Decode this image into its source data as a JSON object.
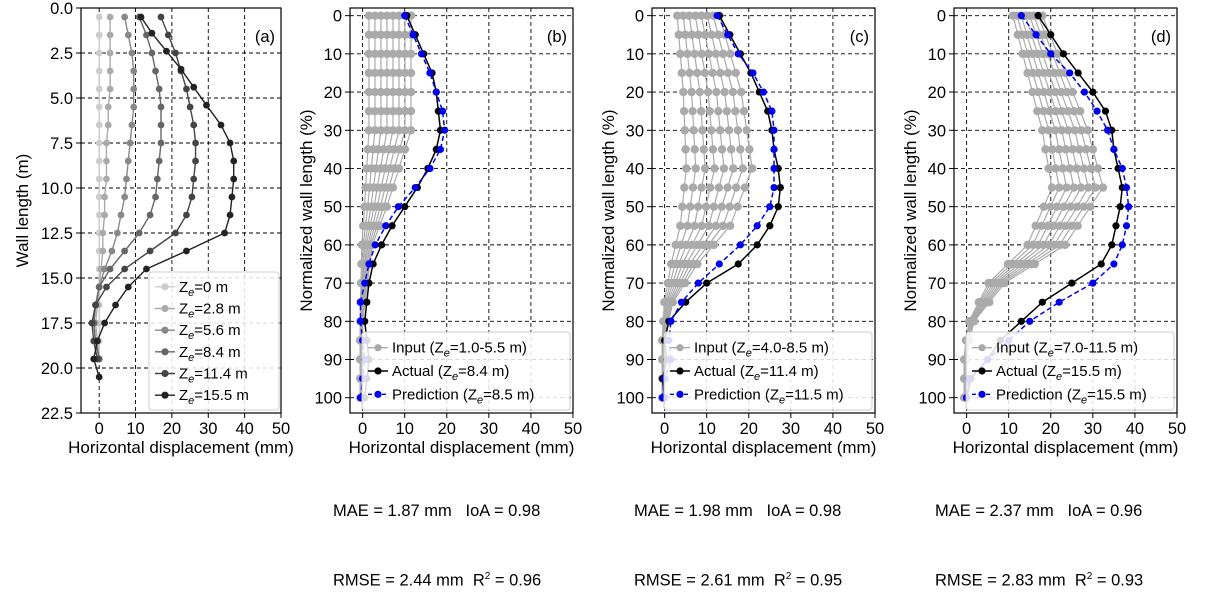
{
  "chart_data": [
    {
      "type": "line",
      "panel_label": "(a)",
      "xlabel": "Horizontal displacement (mm)",
      "ylabel": "Wall length (m)",
      "xlim": [
        -5,
        50
      ],
      "ylim": [
        22.5,
        0
      ],
      "xticks": [
        "0",
        "10",
        "20",
        "30",
        "40",
        "50"
      ],
      "yticks": [
        "0.0",
        "2.5",
        "5.0",
        "7.5",
        "10.0",
        "12.5",
        "15.0",
        "17.5",
        "20.0",
        "22.5"
      ],
      "grid": true,
      "legend_position": "lower-right",
      "series": [
        {
          "name": "Z_e=0 m",
          "legend": {
            "prefix": "Z",
            "sub": "e",
            "suffix": "=0 m"
          },
          "color": "#cccccc",
          "x": [
            0,
            0,
            0,
            0,
            0,
            0,
            0,
            0,
            0,
            0,
            0,
            0,
            0,
            0,
            0,
            0,
            0,
            0,
            0,
            0
          ],
          "y": [
            0.5,
            1.5,
            2.5,
            3.5,
            4.5,
            5.5,
            6.5,
            7.5,
            8.5,
            9.5,
            10.5,
            11.5,
            12.5,
            13.5,
            14.5,
            15.5,
            16.5,
            17.5,
            18.5,
            19.5
          ]
        },
        {
          "name": "Z_e=2.8 m",
          "legend": {
            "prefix": "Z",
            "sub": "e",
            "suffix": "=2.8 m"
          },
          "color": "#aaaaaa",
          "x": [
            3,
            3,
            3,
            3,
            3,
            2.5,
            2.5,
            2,
            2,
            2,
            1.5,
            1.5,
            1,
            1,
            0.5,
            0,
            -0.5,
            -1,
            -0.5,
            0
          ],
          "y": [
            0.5,
            1.5,
            2.5,
            3.5,
            4.5,
            5.5,
            6.5,
            7.5,
            8.5,
            9.5,
            10.5,
            11.5,
            12.5,
            13.5,
            14.5,
            15.5,
            16.5,
            17.5,
            18.5,
            19.5
          ]
        },
        {
          "name": "Z_e=5.6 m",
          "legend": {
            "prefix": "Z",
            "sub": "e",
            "suffix": "=5.6 m"
          },
          "color": "#888888",
          "x": [
            7,
            8,
            9,
            9.5,
            9.5,
            9.5,
            9,
            8.5,
            8,
            7.5,
            7,
            6,
            5,
            3.5,
            1.5,
            0,
            -1,
            -1.5,
            -1,
            0
          ],
          "y": [
            0.5,
            1.5,
            2.5,
            3.5,
            4.5,
            5.5,
            6.5,
            7.5,
            8.5,
            9.5,
            10.5,
            11.5,
            12.5,
            13.5,
            14.5,
            15.5,
            16.5,
            17.5,
            18.5,
            19.5
          ]
        },
        {
          "name": "Z_e=8.4 m",
          "legend": {
            "prefix": "Z",
            "sub": "e",
            "suffix": "=8.4 m"
          },
          "color": "#666666",
          "x": [
            11,
            13,
            14.5,
            15.5,
            16.5,
            17,
            17,
            17,
            16.5,
            16,
            15.5,
            14,
            11,
            7,
            3,
            0,
            -1,
            -1.5,
            -1,
            0
          ],
          "y": [
            0.5,
            1.5,
            2.5,
            3.5,
            4.5,
            5.5,
            6.5,
            7.5,
            8.5,
            9.5,
            10.5,
            11.5,
            12.5,
            13.5,
            14.5,
            15.5,
            16.5,
            17.5,
            18.5,
            19.5
          ]
        },
        {
          "name": "Z_e=11.4 m",
          "legend": {
            "prefix": "Z",
            "sub": "e",
            "suffix": "=11.4 m"
          },
          "color": "#444444",
          "x": [
            17,
            19,
            21,
            22.5,
            24,
            25,
            26,
            26.5,
            26.5,
            26,
            25.5,
            24,
            21,
            14,
            7,
            2,
            -1,
            -2,
            -1.5,
            -0.5
          ],
          "y": [
            0.5,
            1.5,
            2.5,
            3.5,
            4.5,
            5.5,
            6.5,
            7.5,
            8.5,
            9.5,
            10.5,
            11.5,
            12.5,
            13.5,
            14.5,
            15.5,
            16.5,
            17.5,
            18.5,
            19.5
          ]
        },
        {
          "name": "Z_e=15.5 m",
          "legend": {
            "prefix": "Z",
            "sub": "e",
            "suffix": "=15.5 m"
          },
          "color": "#222222",
          "x": [
            11.5,
            14.5,
            18.5,
            22.5,
            26,
            29.5,
            33.5,
            36,
            37,
            37,
            36.5,
            36,
            34.5,
            24,
            13,
            8,
            4.5,
            1.5,
            -0.5,
            -1.5,
            0
          ],
          "y": [
            0.5,
            1.4,
            2.4,
            3.4,
            4.4,
            5.4,
            6.5,
            7.5,
            8.5,
            9.5,
            10.5,
            11.5,
            12.5,
            13.5,
            14.5,
            15.5,
            16.5,
            17.5,
            18.5,
            19.5,
            20.5
          ]
        }
      ]
    },
    {
      "type": "line",
      "panel_label": "(b)",
      "xlabel": "Horizontal displacement (mm)",
      "ylabel": "Normalized wall length (%)",
      "xlim": [
        -3,
        50
      ],
      "ylim": [
        104,
        -2
      ],
      "xticks": [
        "0",
        "10",
        "20",
        "30",
        "40",
        "50"
      ],
      "yticks": [
        "0",
        "10",
        "20",
        "30",
        "40",
        "50",
        "60",
        "70",
        "80",
        "90",
        "100"
      ],
      "grid": true,
      "legend_position": "lower-right",
      "input_band": {
        "x_first": 1.5,
        "x_last": 11.5,
        "y_first": 0,
        "y_last": 100,
        "rows": 20
      },
      "series": [
        {
          "name": "Input (Z_e=1.0-5.5 m)",
          "legend": {
            "prefix": "Input (Z",
            "sub": "e",
            "suffix": "=1.0-5.5 m)"
          },
          "color": "#aaaaaa",
          "profile": [
            [
              0,
              1.0
            ],
            [
              20,
              1.0
            ],
            [
              30,
              1.0
            ],
            [
              50,
              0.5
            ],
            [
              60,
              0.2
            ],
            [
              80,
              0.0
            ],
            [
              100,
              0.0
            ]
          ]
        },
        {
          "name": "Actual (Z_e=8.4 m)",
          "legend": {
            "prefix": "Actual (Z",
            "sub": "e",
            "suffix": "=8.4 m)"
          },
          "color": "#000000",
          "marker": "circle",
          "dash": false,
          "x": [
            10.5,
            12.5,
            14.5,
            16.5,
            17.5,
            18,
            18.5,
            17.5,
            15.5,
            13,
            10,
            7,
            4.5,
            2.5,
            1.5,
            1,
            0.5,
            1,
            1.5,
            1,
            0.5
          ],
          "y": [
            0,
            5,
            10,
            15,
            20,
            25,
            30,
            35,
            40,
            45,
            50,
            55,
            60,
            65,
            70,
            75,
            80,
            85,
            90,
            95,
            100
          ]
        },
        {
          "name": "Prediction (Z_e=8.5 m)",
          "legend": {
            "prefix": "Prediction (Z",
            "sub": "e",
            "suffix": "=8.5 m)"
          },
          "color": "#0000ee",
          "marker": "circle",
          "dash": true,
          "x": [
            10,
            12,
            14,
            16,
            17.5,
            19,
            19.5,
            18.5,
            16,
            12.5,
            8.5,
            5.5,
            3,
            1.5,
            0.5,
            -0.5,
            -0.5,
            0,
            0.5,
            0,
            -0.5
          ],
          "y": [
            0,
            5,
            10,
            15,
            20,
            25,
            30,
            35,
            40,
            45,
            50,
            55,
            60,
            65,
            70,
            75,
            80,
            85,
            90,
            95,
            100
          ]
        }
      ]
    },
    {
      "type": "line",
      "panel_label": "(c)",
      "xlabel": "Horizontal displacement (mm)",
      "ylabel": "Normalized wall length (%)",
      "xlim": [
        -3,
        50
      ],
      "ylim": [
        104,
        -2
      ],
      "xticks": [
        "0",
        "10",
        "20",
        "30",
        "40",
        "50"
      ],
      "yticks": [
        "0",
        "10",
        "20",
        "30",
        "40",
        "50",
        "60",
        "70",
        "80",
        "90",
        "100"
      ],
      "grid": true,
      "legend_position": "lower-right",
      "input_band": {
        "x_first": 3.0,
        "x_last": 13.0,
        "y_first": 0,
        "y_last": 100,
        "rows": 20
      },
      "series": [
        {
          "name": "Input (Z_e=4.0-8.5 m)",
          "legend": {
            "prefix": "Input (Z",
            "sub": "e",
            "suffix": "=4.0-8.5 m)"
          },
          "color": "#aaaaaa",
          "profile": [
            [
              0,
              1.0
            ],
            [
              20,
              1.4
            ],
            [
              40,
              1.6
            ],
            [
              55,
              1.2
            ],
            [
              65,
              0.6
            ],
            [
              75,
              0.15
            ],
            [
              85,
              0.0
            ],
            [
              100,
              0.0
            ]
          ]
        },
        {
          "name": "Actual (Z_e=11.4 m)",
          "legend": {
            "prefix": "Actual (Z",
            "sub": "e",
            "suffix": "=11.4 m)"
          },
          "color": "#000000",
          "marker": "circle",
          "dash": false,
          "x": [
            13,
            15.5,
            18,
            20.5,
            22.5,
            24.5,
            25.5,
            26,
            27,
            27.5,
            27,
            25,
            22,
            17.5,
            10,
            5,
            1,
            0,
            0.5,
            -0.5,
            0
          ],
          "y": [
            0,
            5,
            10,
            15,
            20,
            25,
            30,
            35,
            40,
            45,
            50,
            55,
            60,
            65,
            70,
            75,
            80,
            85,
            90,
            95,
            100
          ]
        },
        {
          "name": "Prediction (Z_e=11.5 m)",
          "legend": {
            "prefix": "Prediction (Z",
            "sub": "e",
            "suffix": "=11.5 m)"
          },
          "color": "#0000ee",
          "marker": "circle",
          "dash": true,
          "x": [
            12.5,
            15,
            17.5,
            21,
            23.5,
            25.5,
            26,
            26,
            26,
            26,
            25,
            22,
            18,
            13,
            8,
            4,
            1.5,
            1,
            1.5,
            0,
            -0.5
          ],
          "y": [
            0,
            5,
            10,
            15,
            20,
            25,
            30,
            35,
            40,
            45,
            50,
            55,
            60,
            65,
            70,
            75,
            80,
            85,
            90,
            95,
            100
          ]
        }
      ]
    },
    {
      "type": "line",
      "panel_label": "(d)",
      "xlabel": "Horizontal displacement (mm)",
      "ylabel": "Normalized wall length (%)",
      "xlim": [
        -3,
        50
      ],
      "ylim": [
        104,
        -2
      ],
      "xticks": [
        "0",
        "10",
        "20",
        "30",
        "40",
        "50"
      ],
      "yticks": [
        "0",
        "10",
        "20",
        "30",
        "40",
        "50",
        "60",
        "70",
        "80",
        "90",
        "100"
      ],
      "grid": true,
      "legend_position": "lower-right",
      "input_band": {
        "x_first": 11.0,
        "x_last": 18.0,
        "y_first": 0,
        "y_last": 100,
        "rows": 20
      },
      "series": [
        {
          "name": "Input (Z_e=7.0-11.5 m)",
          "legend": {
            "prefix": "Input (Z",
            "sub": "e",
            "suffix": "=7.0-11.5 m)"
          },
          "color": "#aaaaaa",
          "profile": [
            [
              0,
              1.0
            ],
            [
              30,
              1.6
            ],
            [
              45,
              1.8
            ],
            [
              60,
              1.3
            ],
            [
              70,
              0.5
            ],
            [
              80,
              0.1
            ],
            [
              88,
              0.0
            ],
            [
              100,
              0.0
            ]
          ]
        },
        {
          "name": "Actual (Z_e=15.5 m)",
          "legend": {
            "prefix": "Actual (Z",
            "sub": "e",
            "suffix": "=15.5 m)"
          },
          "color": "#000000",
          "marker": "circle",
          "dash": false,
          "x": [
            17,
            20,
            23,
            26.5,
            30,
            33,
            34.5,
            35,
            36,
            37,
            36.5,
            35.5,
            34.5,
            32,
            25,
            18,
            13,
            8,
            5,
            1,
            0
          ],
          "y": [
            0,
            5,
            10,
            15,
            20,
            25,
            30,
            35,
            40,
            45,
            50,
            55,
            60,
            65,
            70,
            75,
            80,
            85,
            90,
            95,
            100
          ]
        },
        {
          "name": "Prediction (Z_e=15.5 m)",
          "legend": {
            "prefix": "Prediction (Z",
            "sub": "e",
            "suffix": "=15.5 m)"
          },
          "color": "#0000ee",
          "marker": "circle",
          "dash": true,
          "x": [
            13,
            16.5,
            20,
            24.5,
            28,
            31,
            33.5,
            35,
            37,
            38,
            38.5,
            38,
            37,
            35,
            30,
            22,
            15,
            10,
            5,
            0.5,
            0
          ],
          "y": [
            0,
            5,
            10,
            15,
            20,
            25,
            30,
            35,
            40,
            45,
            50,
            55,
            60,
            65,
            70,
            75,
            80,
            85,
            90,
            95,
            100
          ]
        }
      ]
    }
  ],
  "metrics": [
    {
      "line1": "MAE = 1.87 mm   IoA = 0.98",
      "line2_prefix": "RMSE = 2.44 mm  R",
      "line2_sup": "2",
      "line2_suffix": " = 0.96"
    },
    {
      "line1": "MAE = 1.98 mm   IoA = 0.98",
      "line2_prefix": "RMSE = 2.61 mm  R",
      "line2_sup": "2",
      "line2_suffix": " = 0.95"
    },
    {
      "line1": "MAE = 2.37 mm   IoA = 0.96",
      "line2_prefix": "RMSE = 2.83 mm  R",
      "line2_sup": "2",
      "line2_suffix": " = 0.93"
    }
  ]
}
